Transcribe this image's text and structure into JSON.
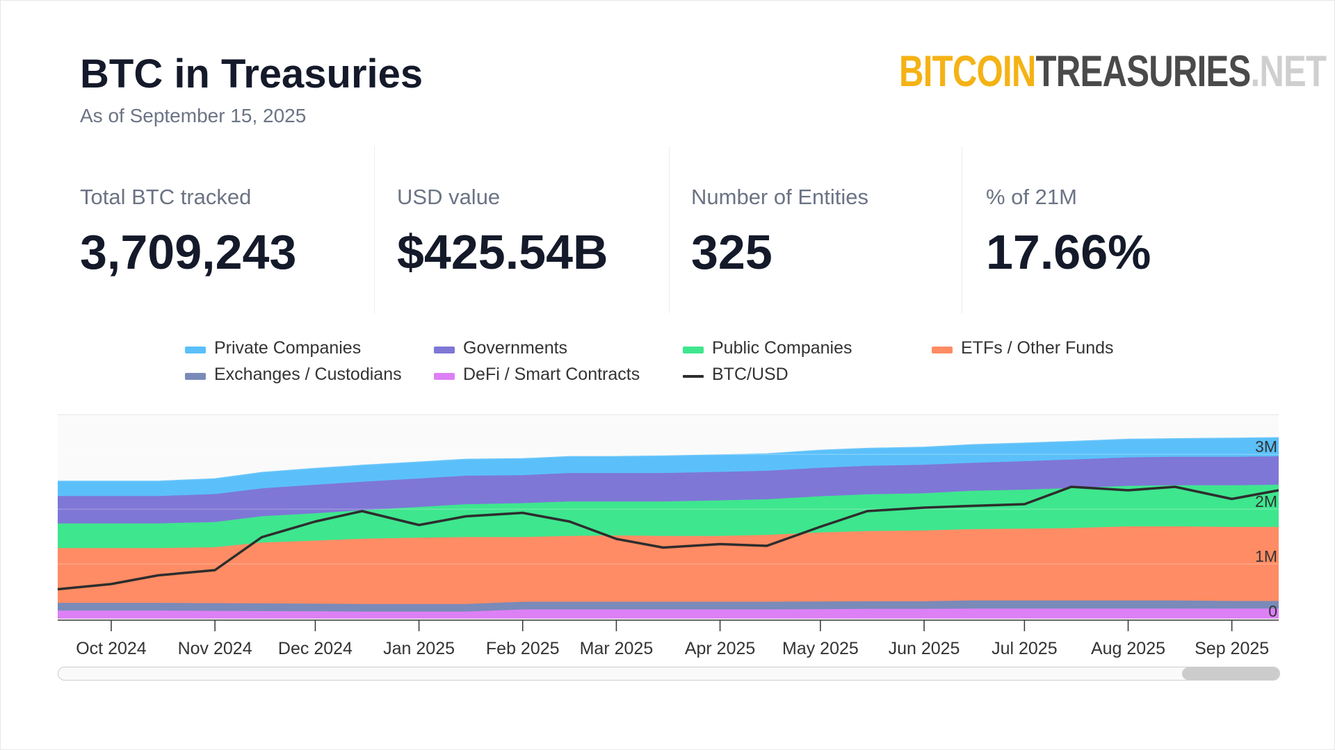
{
  "header": {
    "title": "BTC in Treasuries",
    "subtitle": "As of September 15, 2025",
    "logo": {
      "part1": "BITCOIN",
      "part2": "TREASURIES",
      "part3": ".NET"
    }
  },
  "stats": [
    {
      "label": "Total BTC tracked",
      "value": "3,709,243"
    },
    {
      "label": "USD value",
      "value": "$425.54B"
    },
    {
      "label": "Number of Entities",
      "value": "325"
    },
    {
      "label": "% of 21M",
      "value": "17.66%"
    }
  ],
  "colors": {
    "defi": "#dd80f6",
    "exchanges": "#7a8ab9",
    "etfs": "#ff8c64",
    "public": "#3ee68e",
    "governments": "#7e77d6",
    "private": "#5bc0fa",
    "btcusd": "#2d2d2d"
  },
  "legend": [
    {
      "label": "Private Companies",
      "color": "#5bc0fa",
      "type": "area"
    },
    {
      "label": "Governments",
      "color": "#7e77d6",
      "type": "area"
    },
    {
      "label": "Public Companies",
      "color": "#3ee68e",
      "type": "area"
    },
    {
      "label": "ETFs / Other Funds",
      "color": "#ff8c64",
      "type": "area"
    },
    {
      "label": "Exchanges / Custodians",
      "color": "#7a8ab9",
      "type": "area"
    },
    {
      "label": "DeFi / Smart Contracts",
      "color": "#dd80f6",
      "type": "area"
    },
    {
      "label": "BTC/USD",
      "color": "#2d2d2d",
      "type": "line"
    }
  ],
  "chart_data": {
    "type": "area",
    "stacked": true,
    "x": [
      "2024-09-15",
      "2024-10-01",
      "2024-10-15",
      "2024-11-01",
      "2024-11-15",
      "2024-12-01",
      "2024-12-15",
      "2025-01-01",
      "2025-01-15",
      "2025-02-01",
      "2025-02-15",
      "2025-03-01",
      "2025-03-15",
      "2025-04-01",
      "2025-04-15",
      "2025-05-01",
      "2025-05-15",
      "2025-06-01",
      "2025-06-15",
      "2025-07-01",
      "2025-07-15",
      "2025-08-01",
      "2025-08-15",
      "2025-09-01",
      "2025-09-15"
    ],
    "x_tick_labels": [
      "Oct 2024",
      "Nov 2024",
      "Dec 2024",
      "Jan 2025",
      "Feb 2025",
      "Mar 2025",
      "Apr 2025",
      "May 2025",
      "Jun 2025",
      "Jul 2025",
      "Aug 2025",
      "Sep 2025"
    ],
    "y_tick_labels": [
      "0",
      "1M",
      "2M",
      "3M"
    ],
    "ylim": [
      0,
      3700000
    ],
    "series": [
      {
        "name": "DeFi / Smart Contracts",
        "values": [
          150000,
          150000,
          150000,
          145000,
          140000,
          135000,
          130000,
          130000,
          130000,
          170000,
          170000,
          170000,
          170000,
          170000,
          170000,
          175000,
          180000,
          180000,
          185000,
          185000,
          185000,
          185000,
          185000,
          185000,
          185000
        ]
      },
      {
        "name": "Exchanges / Custodians",
        "values": [
          140000,
          140000,
          140000,
          140000,
          140000,
          140000,
          140000,
          140000,
          140000,
          140000,
          140000,
          140000,
          140000,
          140000,
          140000,
          140000,
          140000,
          140000,
          150000,
          150000,
          150000,
          150000,
          150000,
          140000,
          140000
        ]
      },
      {
        "name": "ETFs / Other Funds",
        "values": [
          1000000,
          1000000,
          1000000,
          1020000,
          1110000,
          1150000,
          1190000,
          1210000,
          1220000,
          1180000,
          1200000,
          1210000,
          1200000,
          1200000,
          1220000,
          1260000,
          1280000,
          1290000,
          1300000,
          1310000,
          1320000,
          1350000,
          1350000,
          1350000,
          1350000
        ]
      },
      {
        "name": "Public Companies",
        "values": [
          450000,
          450000,
          450000,
          460000,
          480000,
          500000,
          520000,
          560000,
          600000,
          620000,
          630000,
          620000,
          630000,
          650000,
          650000,
          660000,
          670000,
          680000,
          700000,
          710000,
          730000,
          740000,
          750000,
          760000,
          770000
        ]
      },
      {
        "name": "Governments",
        "values": [
          500000,
          500000,
          500000,
          510000,
          510000,
          520000,
          520000,
          520000,
          520000,
          510000,
          520000,
          520000,
          520000,
          520000,
          520000,
          520000,
          520000,
          520000,
          510000,
          520000,
          520000,
          520000,
          520000,
          520000,
          520000
        ]
      },
      {
        "name": "Private Companies",
        "values": [
          260000,
          260000,
          260000,
          270000,
          280000,
          290000,
          290000,
          290000,
          290000,
          290000,
          290000,
          290000,
          300000,
          300000,
          300000,
          310000,
          310000,
          310000,
          320000,
          320000,
          320000,
          320000,
          320000,
          330000,
          330000
        ]
      }
    ],
    "btcusd": {
      "name": "BTC/USD",
      "values": [
        58000,
        61000,
        66000,
        69000,
        88000,
        97000,
        103000,
        95000,
        100000,
        102000,
        97000,
        87000,
        82000,
        84000,
        83000,
        94000,
        103000,
        105000,
        106000,
        107000,
        117000,
        115000,
        117000,
        110000,
        115000
      ]
    }
  },
  "scrollbar": {
    "position": 0.95
  }
}
